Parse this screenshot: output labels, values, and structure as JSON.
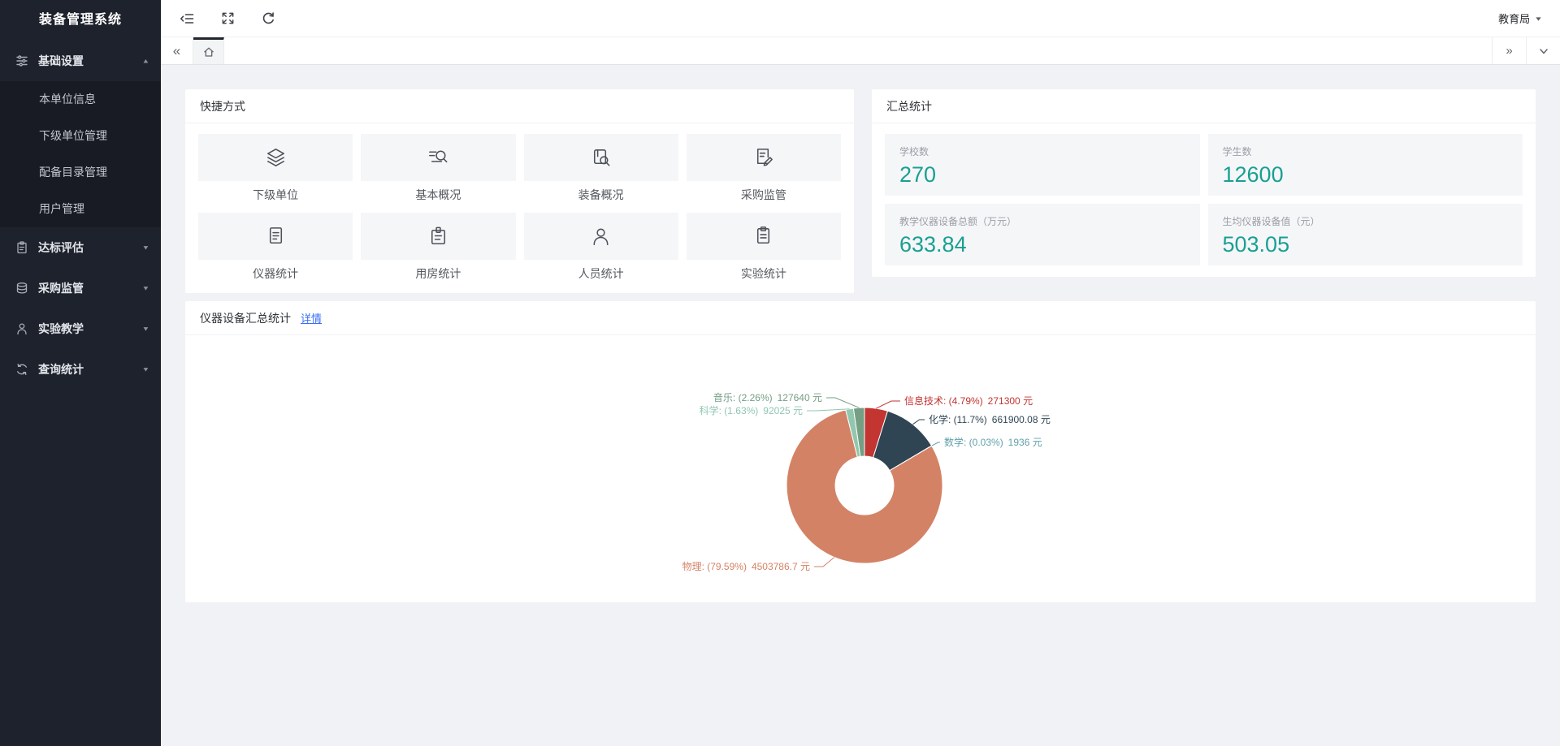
{
  "app": {
    "title": "装备管理系统"
  },
  "topbar": {
    "user": "教育局"
  },
  "sidebar": {
    "items": [
      {
        "label": "基础设置",
        "icon": "sliders-icon",
        "expanded": true,
        "children": [
          "本单位信息",
          "下级单位管理",
          "配备目录管理",
          "用户管理"
        ]
      },
      {
        "label": "达标评估",
        "icon": "clipboard-icon",
        "expanded": false
      },
      {
        "label": "采购监管",
        "icon": "database-icon",
        "expanded": false
      },
      {
        "label": "实验教学",
        "icon": "person-icon",
        "expanded": false
      },
      {
        "label": "查询统计",
        "icon": "sync-icon",
        "expanded": false
      }
    ]
  },
  "quick_panel": {
    "title": "快捷方式",
    "items": [
      {
        "label": "下级单位",
        "icon": "layers-icon"
      },
      {
        "label": "基本概况",
        "icon": "search-lines-icon"
      },
      {
        "label": "装备概况",
        "icon": "book-search-icon"
      },
      {
        "label": "采购监管",
        "icon": "doc-edit-icon"
      },
      {
        "label": "仪器统计",
        "icon": "document-icon"
      },
      {
        "label": "用房统计",
        "icon": "clipboard-pin-icon"
      },
      {
        "label": "人员统计",
        "icon": "person-icon"
      },
      {
        "label": "实验统计",
        "icon": "clipboard-lines-icon"
      }
    ]
  },
  "summary_panel": {
    "title": "汇总统计",
    "value_color": "#18a092",
    "stats": [
      {
        "label": "学校数",
        "value": "270"
      },
      {
        "label": "学生数",
        "value": "12600"
      },
      {
        "label": "教学仪器设备总额（万元）",
        "value": "633.84"
      },
      {
        "label": "生均仪器设备值（元）",
        "value": "503.05"
      }
    ]
  },
  "chart_panel": {
    "title": "仪器设备汇总统计",
    "link": "详情"
  },
  "chart_data": {
    "type": "pie",
    "title": "仪器设备汇总统计",
    "donut": true,
    "legend_position": "none",
    "unit": "元",
    "label_format": "{name}: ({percent}%)  {value} 元",
    "series": [
      {
        "name": "信息技术",
        "percent": "4.79",
        "value": "271300",
        "color": "#c23531"
      },
      {
        "name": "化学",
        "percent": "11.7",
        "value": "661900.08",
        "color": "#2f4554"
      },
      {
        "name": "数学",
        "percent": "0.03",
        "value": "1936",
        "color": "#61a0a8"
      },
      {
        "name": "物理",
        "percent": "79.59",
        "value": "4503786.7",
        "color": "#d48265"
      },
      {
        "name": "科学",
        "percent": "1.63",
        "value": "92025",
        "color": "#91c7ae"
      },
      {
        "name": "音乐",
        "percent": "2.26",
        "value": "127640",
        "color": "#749f83"
      }
    ]
  }
}
